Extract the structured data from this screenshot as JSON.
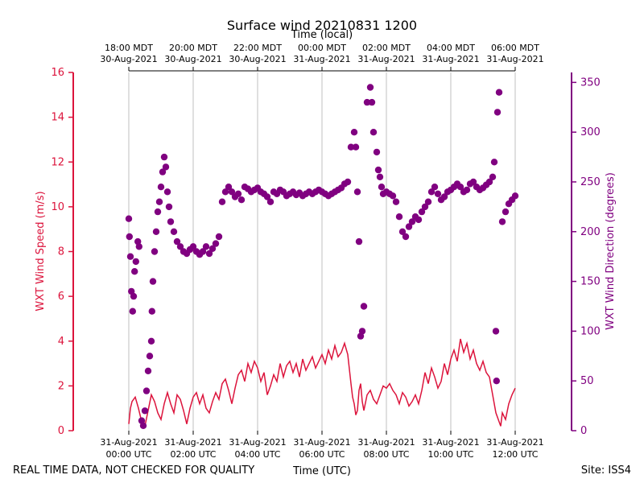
{
  "chart_data": {
    "type": "line+scatter",
    "title": "Surface wind 20210831 1200",
    "top_axis_label": "Time (local)",
    "bottom_axis_label": "Time (UTC)",
    "left_axis_label": "WXT Wind Speed (m/s)",
    "right_axis_label": "WXT Wind Direction (degrees)",
    "x_range_hours_utc": [
      0,
      12
    ],
    "left_ylim": [
      0,
      16
    ],
    "right_ylim": [
      0,
      360
    ],
    "left_ticks": [
      0,
      2,
      4,
      6,
      8,
      10,
      12,
      14,
      16
    ],
    "right_ticks": [
      0,
      50,
      100,
      150,
      200,
      250,
      300,
      350
    ],
    "bottom_ticks": [
      {
        "x": 0,
        "line1": "31-Aug-2021",
        "line2": "00:00 UTC"
      },
      {
        "x": 2,
        "line1": "31-Aug-2021",
        "line2": "02:00 UTC"
      },
      {
        "x": 4,
        "line1": "31-Aug-2021",
        "line2": "04:00 UTC"
      },
      {
        "x": 6,
        "line1": "31-Aug-2021",
        "line2": "06:00 UTC"
      },
      {
        "x": 8,
        "line1": "31-Aug-2021",
        "line2": "08:00 UTC"
      },
      {
        "x": 10,
        "line1": "31-Aug-2021",
        "line2": "10:00 UTC"
      },
      {
        "x": 12,
        "line1": "31-Aug-2021",
        "line2": "12:00 UTC"
      }
    ],
    "top_ticks": [
      {
        "x": 0,
        "line1": "18:00 MDT",
        "line2": "30-Aug-2021"
      },
      {
        "x": 2,
        "line1": "20:00 MDT",
        "line2": "30-Aug-2021"
      },
      {
        "x": 4,
        "line1": "22:00 MDT",
        "line2": "30-Aug-2021"
      },
      {
        "x": 6,
        "line1": "00:00 MDT",
        "line2": "31-Aug-2021"
      },
      {
        "x": 8,
        "line1": "02:00 MDT",
        "line2": "31-Aug-2021"
      },
      {
        "x": 10,
        "line1": "04:00 MDT",
        "line2": "31-Aug-2021"
      },
      {
        "x": 12,
        "line1": "06:00 MDT",
        "line2": "31-Aug-2021"
      }
    ],
    "series": [
      {
        "name": "WXT Wind Speed (m/s)",
        "kind": "line",
        "color": "#dc143c",
        "axis": "left",
        "points": [
          [
            0.0,
            0.3
          ],
          [
            0.05,
            1.0
          ],
          [
            0.1,
            1.3
          ],
          [
            0.2,
            1.5
          ],
          [
            0.3,
            1.0
          ],
          [
            0.4,
            0.4
          ],
          [
            0.5,
            0.2
          ],
          [
            0.6,
            0.9
          ],
          [
            0.7,
            1.6
          ],
          [
            0.8,
            1.3
          ],
          [
            0.9,
            0.8
          ],
          [
            1.0,
            0.5
          ],
          [
            1.1,
            1.2
          ],
          [
            1.2,
            1.7
          ],
          [
            1.3,
            1.2
          ],
          [
            1.4,
            0.8
          ],
          [
            1.5,
            1.6
          ],
          [
            1.6,
            1.4
          ],
          [
            1.7,
            0.9
          ],
          [
            1.8,
            0.3
          ],
          [
            1.9,
            1.0
          ],
          [
            2.0,
            1.5
          ],
          [
            2.1,
            1.7
          ],
          [
            2.2,
            1.2
          ],
          [
            2.3,
            1.6
          ],
          [
            2.4,
            1.0
          ],
          [
            2.5,
            0.8
          ],
          [
            2.6,
            1.3
          ],
          [
            2.7,
            1.7
          ],
          [
            2.8,
            1.4
          ],
          [
            2.9,
            2.1
          ],
          [
            3.0,
            2.3
          ],
          [
            3.1,
            1.8
          ],
          [
            3.2,
            1.2
          ],
          [
            3.3,
            1.9
          ],
          [
            3.4,
            2.5
          ],
          [
            3.5,
            2.7
          ],
          [
            3.6,
            2.2
          ],
          [
            3.7,
            3.0
          ],
          [
            3.8,
            2.6
          ],
          [
            3.9,
            3.1
          ],
          [
            4.0,
            2.8
          ],
          [
            4.1,
            2.2
          ],
          [
            4.2,
            2.6
          ],
          [
            4.3,
            1.6
          ],
          [
            4.4,
            2.0
          ],
          [
            4.5,
            2.5
          ],
          [
            4.6,
            2.2
          ],
          [
            4.7,
            3.0
          ],
          [
            4.8,
            2.4
          ],
          [
            4.9,
            2.9
          ],
          [
            5.0,
            3.1
          ],
          [
            5.1,
            2.6
          ],
          [
            5.2,
            3.0
          ],
          [
            5.3,
            2.4
          ],
          [
            5.4,
            3.2
          ],
          [
            5.5,
            2.7
          ],
          [
            5.6,
            3.0
          ],
          [
            5.7,
            3.3
          ],
          [
            5.8,
            2.8
          ],
          [
            5.9,
            3.1
          ],
          [
            6.0,
            3.4
          ],
          [
            6.1,
            3.0
          ],
          [
            6.2,
            3.6
          ],
          [
            6.3,
            3.2
          ],
          [
            6.4,
            3.8
          ],
          [
            6.5,
            3.3
          ],
          [
            6.6,
            3.5
          ],
          [
            6.7,
            3.9
          ],
          [
            6.8,
            3.4
          ],
          [
            6.9,
            2.1
          ],
          [
            6.95,
            1.5
          ],
          [
            7.0,
            1.2
          ],
          [
            7.05,
            0.7
          ],
          [
            7.1,
            0.9
          ],
          [
            7.15,
            1.8
          ],
          [
            7.2,
            2.1
          ],
          [
            7.25,
            1.3
          ],
          [
            7.3,
            0.9
          ],
          [
            7.4,
            1.6
          ],
          [
            7.5,
            1.8
          ],
          [
            7.6,
            1.4
          ],
          [
            7.7,
            1.2
          ],
          [
            7.8,
            1.6
          ],
          [
            7.9,
            2.0
          ],
          [
            8.0,
            1.9
          ],
          [
            8.1,
            2.1
          ],
          [
            8.2,
            1.8
          ],
          [
            8.3,
            1.6
          ],
          [
            8.4,
            1.2
          ],
          [
            8.5,
            1.7
          ],
          [
            8.6,
            1.5
          ],
          [
            8.7,
            1.1
          ],
          [
            8.8,
            1.3
          ],
          [
            8.9,
            1.6
          ],
          [
            9.0,
            1.2
          ],
          [
            9.1,
            1.8
          ],
          [
            9.2,
            2.6
          ],
          [
            9.3,
            2.1
          ],
          [
            9.4,
            2.8
          ],
          [
            9.5,
            2.4
          ],
          [
            9.6,
            1.9
          ],
          [
            9.7,
            2.2
          ],
          [
            9.8,
            3.0
          ],
          [
            9.9,
            2.5
          ],
          [
            10.0,
            3.2
          ],
          [
            10.1,
            3.6
          ],
          [
            10.2,
            3.1
          ],
          [
            10.3,
            4.1
          ],
          [
            10.4,
            3.5
          ],
          [
            10.5,
            3.9
          ],
          [
            10.6,
            3.2
          ],
          [
            10.7,
            3.6
          ],
          [
            10.8,
            3.0
          ],
          [
            10.9,
            2.7
          ],
          [
            11.0,
            3.1
          ],
          [
            11.1,
            2.6
          ],
          [
            11.2,
            2.4
          ],
          [
            11.3,
            1.6
          ],
          [
            11.4,
            0.8
          ],
          [
            11.5,
            0.4
          ],
          [
            11.55,
            0.2
          ],
          [
            11.6,
            0.8
          ],
          [
            11.7,
            0.5
          ],
          [
            11.8,
            1.2
          ],
          [
            11.9,
            1.6
          ],
          [
            12.0,
            1.9
          ]
        ]
      },
      {
        "name": "WXT Wind Direction (degrees)",
        "kind": "scatter",
        "color": "#800080",
        "axis": "right",
        "points": [
          [
            0.0,
            213
          ],
          [
            0.02,
            195
          ],
          [
            0.05,
            175
          ],
          [
            0.08,
            140
          ],
          [
            0.12,
            120
          ],
          [
            0.15,
            135
          ],
          [
            0.18,
            160
          ],
          [
            0.22,
            170
          ],
          [
            0.28,
            190
          ],
          [
            0.32,
            185
          ],
          [
            0.4,
            10
          ],
          [
            0.45,
            5
          ],
          [
            0.5,
            20
          ],
          [
            0.55,
            40
          ],
          [
            0.6,
            60
          ],
          [
            0.65,
            75
          ],
          [
            0.7,
            90
          ],
          [
            0.72,
            120
          ],
          [
            0.75,
            150
          ],
          [
            0.8,
            180
          ],
          [
            0.85,
            200
          ],
          [
            0.9,
            220
          ],
          [
            0.95,
            230
          ],
          [
            1.0,
            245
          ],
          [
            1.05,
            260
          ],
          [
            1.1,
            275
          ],
          [
            1.15,
            265
          ],
          [
            1.2,
            240
          ],
          [
            1.25,
            225
          ],
          [
            1.3,
            210
          ],
          [
            1.4,
            200
          ],
          [
            1.5,
            190
          ],
          [
            1.6,
            185
          ],
          [
            1.7,
            180
          ],
          [
            1.8,
            178
          ],
          [
            1.9,
            182
          ],
          [
            2.0,
            185
          ],
          [
            2.1,
            180
          ],
          [
            2.2,
            177
          ],
          [
            2.3,
            180
          ],
          [
            2.4,
            185
          ],
          [
            2.5,
            178
          ],
          [
            2.6,
            183
          ],
          [
            2.7,
            188
          ],
          [
            2.8,
            195
          ],
          [
            2.9,
            230
          ],
          [
            3.0,
            240
          ],
          [
            3.1,
            245
          ],
          [
            3.2,
            240
          ],
          [
            3.3,
            235
          ],
          [
            3.4,
            238
          ],
          [
            3.5,
            232
          ],
          [
            3.6,
            245
          ],
          [
            3.7,
            243
          ],
          [
            3.8,
            240
          ],
          [
            3.9,
            242
          ],
          [
            4.0,
            244
          ],
          [
            4.1,
            240
          ],
          [
            4.2,
            238
          ],
          [
            4.3,
            235
          ],
          [
            4.4,
            230
          ],
          [
            4.5,
            240
          ],
          [
            4.6,
            238
          ],
          [
            4.7,
            242
          ],
          [
            4.8,
            240
          ],
          [
            4.9,
            236
          ],
          [
            5.0,
            238
          ],
          [
            5.1,
            240
          ],
          [
            5.2,
            237
          ],
          [
            5.3,
            239
          ],
          [
            5.4,
            236
          ],
          [
            5.5,
            238
          ],
          [
            5.6,
            240
          ],
          [
            5.7,
            238
          ],
          [
            5.8,
            240
          ],
          [
            5.9,
            242
          ],
          [
            6.0,
            240
          ],
          [
            6.1,
            238
          ],
          [
            6.2,
            236
          ],
          [
            6.3,
            238
          ],
          [
            6.4,
            240
          ],
          [
            6.5,
            242
          ],
          [
            6.6,
            244
          ],
          [
            6.7,
            248
          ],
          [
            6.8,
            250
          ],
          [
            6.9,
            285
          ],
          [
            7.0,
            300
          ],
          [
            7.05,
            285
          ],
          [
            7.1,
            240
          ],
          [
            7.15,
            190
          ],
          [
            7.2,
            95
          ],
          [
            7.25,
            100
          ],
          [
            7.3,
            125
          ],
          [
            7.4,
            330
          ],
          [
            7.5,
            345
          ],
          [
            7.55,
            330
          ],
          [
            7.6,
            300
          ],
          [
            7.7,
            280
          ],
          [
            7.75,
            262
          ],
          [
            7.8,
            255
          ],
          [
            7.85,
            245
          ],
          [
            7.9,
            238
          ],
          [
            8.0,
            240
          ],
          [
            8.1,
            238
          ],
          [
            8.2,
            236
          ],
          [
            8.3,
            230
          ],
          [
            8.4,
            215
          ],
          [
            8.5,
            200
          ],
          [
            8.6,
            195
          ],
          [
            8.7,
            205
          ],
          [
            8.8,
            210
          ],
          [
            8.9,
            215
          ],
          [
            9.0,
            212
          ],
          [
            9.1,
            220
          ],
          [
            9.2,
            225
          ],
          [
            9.3,
            230
          ],
          [
            9.4,
            240
          ],
          [
            9.5,
            245
          ],
          [
            9.6,
            238
          ],
          [
            9.7,
            232
          ],
          [
            9.8,
            235
          ],
          [
            9.9,
            240
          ],
          [
            10.0,
            242
          ],
          [
            10.1,
            245
          ],
          [
            10.2,
            248
          ],
          [
            10.3,
            245
          ],
          [
            10.4,
            240
          ],
          [
            10.5,
            242
          ],
          [
            10.6,
            248
          ],
          [
            10.7,
            250
          ],
          [
            10.8,
            245
          ],
          [
            10.9,
            242
          ],
          [
            11.0,
            244
          ],
          [
            11.1,
            247
          ],
          [
            11.2,
            250
          ],
          [
            11.3,
            255
          ],
          [
            11.35,
            270
          ],
          [
            11.4,
            100
          ],
          [
            11.42,
            50
          ],
          [
            11.45,
            320
          ],
          [
            11.5,
            340
          ],
          [
            11.6,
            210
          ],
          [
            11.7,
            220
          ],
          [
            11.8,
            228
          ],
          [
            11.9,
            232
          ],
          [
            12.0,
            236
          ]
        ]
      }
    ]
  },
  "footer": {
    "left_note": "REAL TIME DATA, NOT CHECKED FOR QUALITY",
    "site": "Site: ISS4"
  }
}
